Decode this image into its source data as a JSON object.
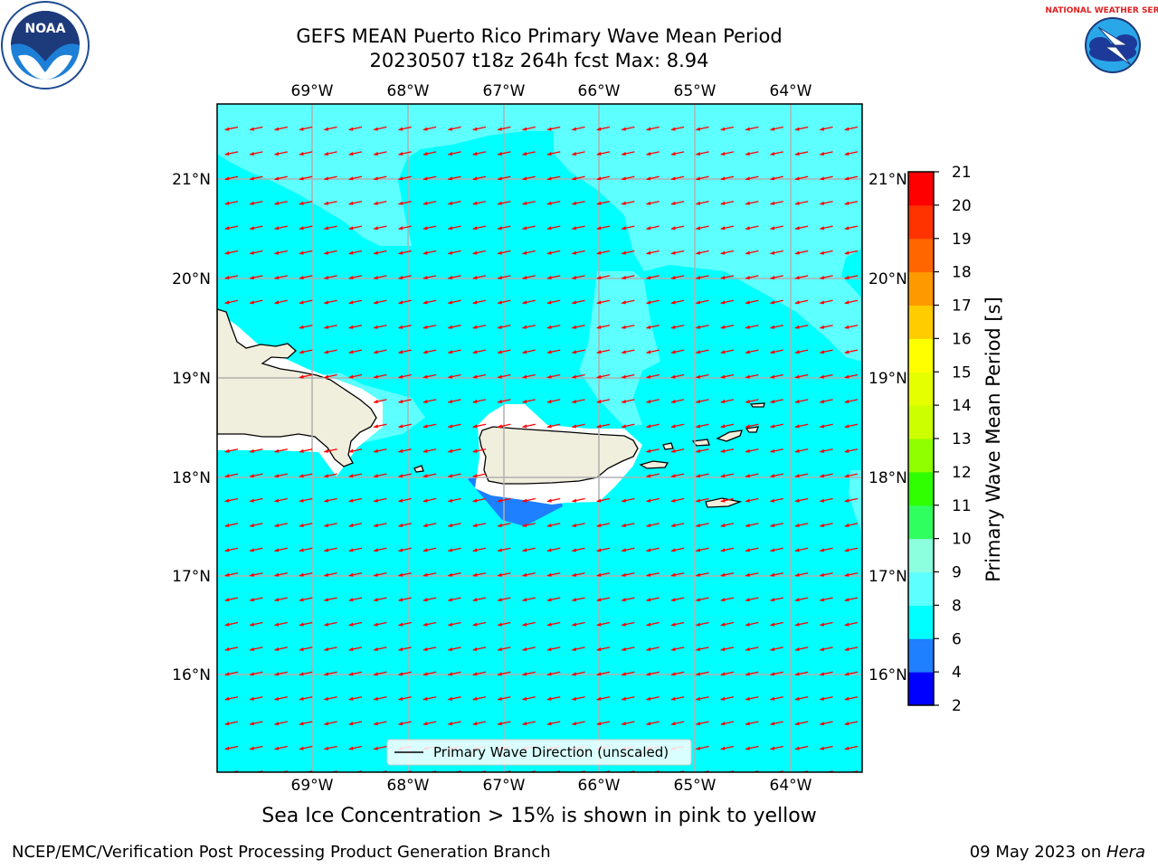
{
  "title": {
    "line1": "GEFS MEAN Puerto Rico Primary Wave Mean Period",
    "line2": "20230507 t18z 264h fcst   Max: 8.94"
  },
  "map": {
    "lon_ticks": [
      "69°W",
      "68°W",
      "67°W",
      "66°W",
      "65°W",
      "64°W"
    ],
    "lat_ticks": [
      "21°N",
      "20°N",
      "19°N",
      "18°N",
      "17°N",
      "16°N"
    ],
    "legend_label": "Primary Wave Direction (unscaled)",
    "colors": {
      "ocean_main": "#00ffff",
      "ocean_light": "#5dffff",
      "land": "#f0eedc",
      "shallow": "#1e7fff",
      "arrow": "#ff0000"
    }
  },
  "colorbar": {
    "label": "Primary Wave Mean Period [s]",
    "tick_labels": [
      "2",
      "4",
      "6",
      "8",
      "9",
      "10",
      "11",
      "12",
      "13",
      "14",
      "15",
      "16",
      "17",
      "18",
      "19",
      "20",
      "21"
    ],
    "colors": [
      "#0000ff",
      "#1e7fff",
      "#00ffff",
      "#5dffff",
      "#8cffde",
      "#30ff60",
      "#2fff00",
      "#90ff00",
      "#ccff00",
      "#e6ff00",
      "#ffff00",
      "#ffcc00",
      "#ff9900",
      "#ff6600",
      "#ff3300",
      "#ff0000"
    ]
  },
  "subtitle": "Sea Ice Concentration > 15% is shown in pink to yellow",
  "footer": {
    "left": "NCEP/EMC/Verification Post Processing Product Generation Branch",
    "date": "09 May 2023 on ",
    "host": "Hera"
  },
  "logos": {
    "left": "NOAA",
    "right": "NATIONAL WEATHER SERVICE"
  }
}
